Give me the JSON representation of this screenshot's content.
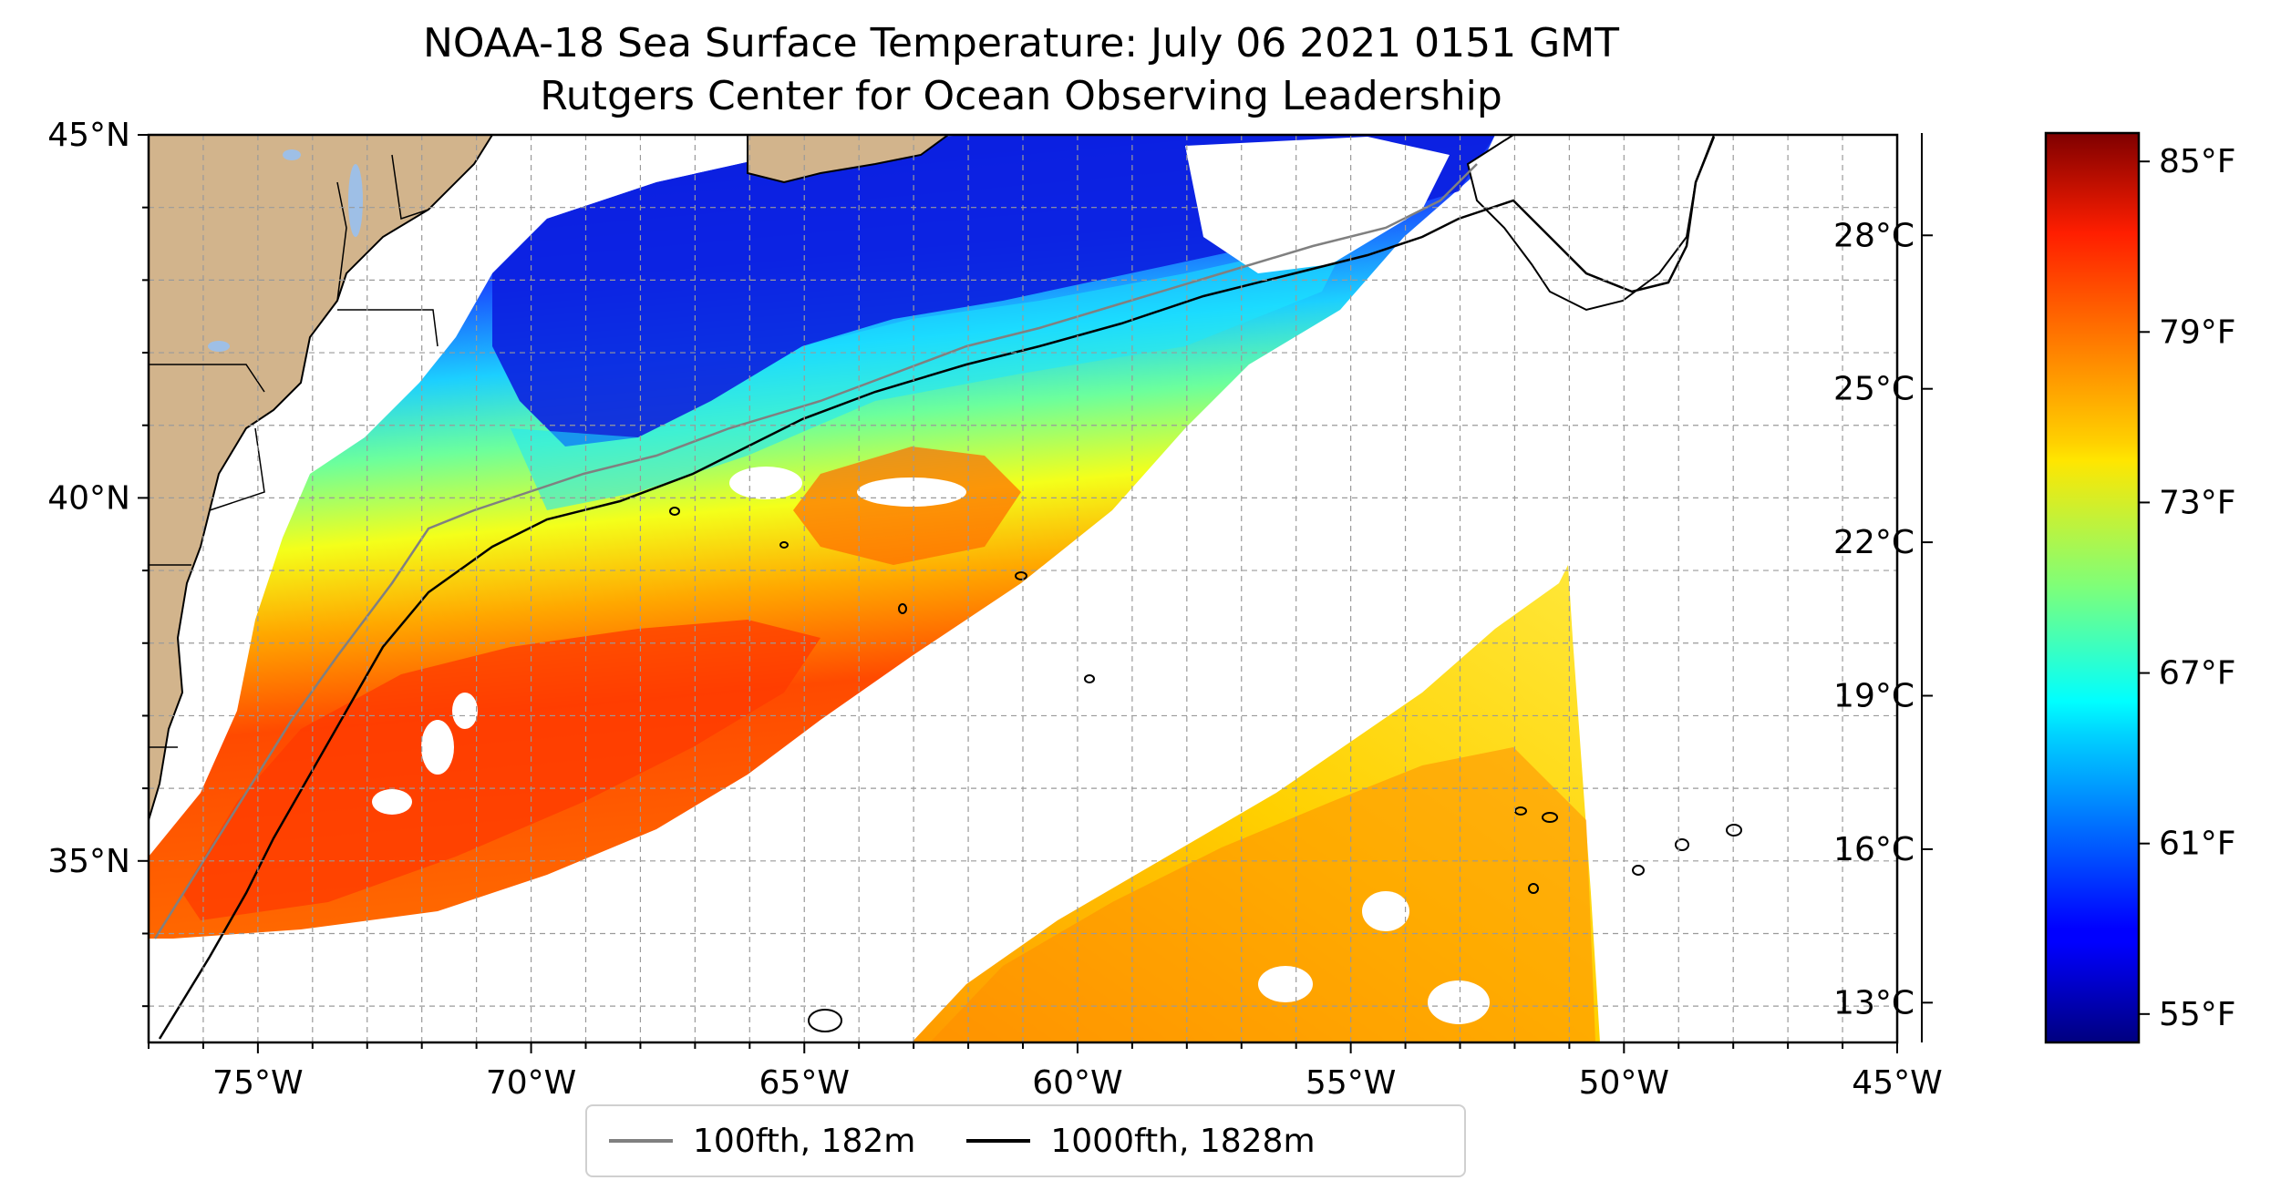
{
  "title": "NOAA-18 Sea Surface Temperature: July 06 2021 0151 GMT",
  "subtitle": "Rutgers Center for Ocean Observing Leadership",
  "map": {
    "lon_range": [
      -77,
      -45
    ],
    "lat_range": [
      32.5,
      45
    ],
    "lon_ticks": [
      "75°W",
      "70°W",
      "65°W",
      "60°W",
      "55°W",
      "50°W",
      "45°W"
    ],
    "lat_ticks": [
      "45°N",
      "40°N",
      "35°N"
    ],
    "gridlines": "dashed gray, every 1 degree",
    "land_color": "#d2b48c",
    "lake_color": "#9ebfe6",
    "no_data_color": "#ffffff",
    "projection": "PlateCarree"
  },
  "legend": {
    "placement": "bottom-center",
    "entries": [
      {
        "label": "100fth, 182m",
        "color": "#808080"
      },
      {
        "label": "1000fth, 1828m",
        "color": "#000000"
      }
    ]
  },
  "colorbar": {
    "colormap": "jet",
    "range_f": [
      54,
      86
    ],
    "celsius_ticks": [
      "28°C",
      "25°C",
      "22°C",
      "19°C",
      "16°C",
      "13°C"
    ],
    "fahrenheit_ticks": [
      "85°F",
      "79°F",
      "73°F",
      "67°F",
      "61°F",
      "55°F"
    ]
  }
}
